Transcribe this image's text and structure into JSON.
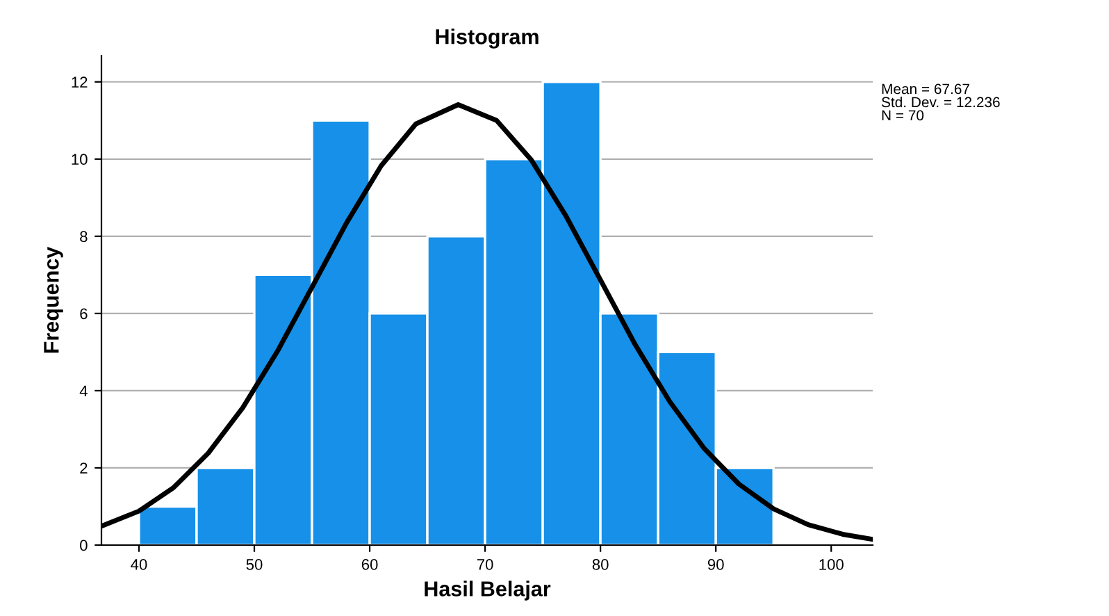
{
  "chart_data": {
    "type": "histogram",
    "title": "Histogram",
    "xlabel": "Hasil Belajar",
    "ylabel": "Frequency",
    "bins": [
      40,
      45,
      50,
      55,
      60,
      65,
      70,
      75,
      80,
      85,
      90,
      95
    ],
    "values": [
      1,
      2,
      7,
      11,
      6,
      8,
      10,
      12,
      6,
      5,
      2
    ],
    "color": "#1690e8",
    "series": [
      {
        "type": "line",
        "color": "#000000",
        "x": [
          36.75,
          40,
          43,
          46,
          49,
          52,
          55,
          58,
          61,
          64,
          67.67,
          71,
          74,
          77,
          80,
          83,
          86,
          89,
          92,
          95,
          98,
          101,
          103.6
        ],
        "values": [
          0.49,
          0.88,
          1.49,
          2.38,
          3.56,
          5.02,
          6.68,
          8.35,
          9.83,
          10.91,
          11.41,
          11.0,
          9.98,
          8.53,
          6.87,
          5.2,
          3.72,
          2.5,
          1.58,
          0.94,
          0.53,
          0.28,
          0.15
        ]
      }
    ],
    "xlim": [
      36.75,
      103.6
    ],
    "ylim": [
      0,
      12.68
    ],
    "xticks": [
      40,
      50,
      60,
      70,
      80,
      90,
      100
    ],
    "yticks": [
      0,
      2,
      4,
      6,
      8,
      10,
      12
    ],
    "grid": "y",
    "annotations": [
      "Mean = 67.67",
      "Std. Dev. = 12.236",
      "N = 70"
    ]
  }
}
